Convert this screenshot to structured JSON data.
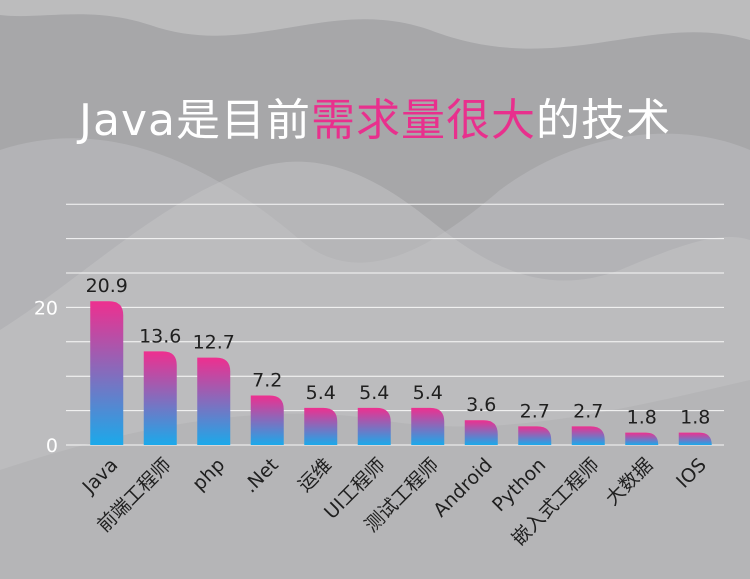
{
  "title": {
    "prefix": "Java是目前",
    "highlight": "需求量很大",
    "suffix": "的技术"
  },
  "colors": {
    "highlight": "#e8308d",
    "bar_top": "#ee2f8f",
    "bar_bottom": "#1ba9ea",
    "grid": "#ffffff"
  },
  "chart_data": {
    "type": "bar",
    "title": "Java是目前需求量很大的技术",
    "categories": [
      "Java",
      "前端工程师",
      "php",
      ".Net",
      "运维",
      "UI工程师",
      "测试工程师",
      "Android",
      "Python",
      "嵌入式工程师",
      "大数据",
      "IOS"
    ],
    "values": [
      20.9,
      13.6,
      12.7,
      7.2,
      5.4,
      5.4,
      5.4,
      3.6,
      2.7,
      2.7,
      1.8,
      1.8
    ],
    "value_labels": [
      "20.9",
      "13.6",
      "12.7",
      "7.2",
      "5.4",
      "5.4",
      "5.4",
      "3.6",
      "2.7",
      "2.7",
      "1.8",
      "1.8"
    ],
    "yticks": [
      0,
      20
    ],
    "ytick_labels": [
      "0",
      "20"
    ],
    "ylim": [
      0,
      35
    ],
    "gridlines": [
      0,
      5,
      10,
      15,
      20,
      25,
      30,
      35
    ],
    "grid": true,
    "legend": "none"
  }
}
